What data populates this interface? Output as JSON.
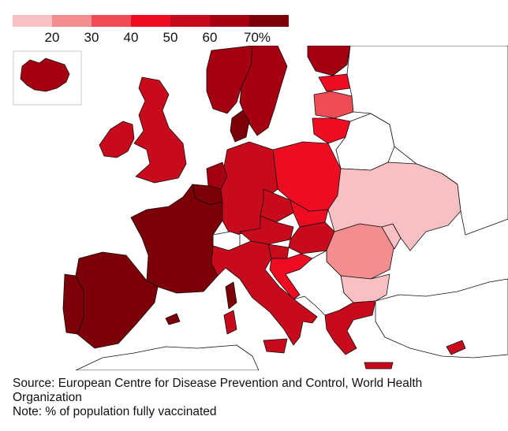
{
  "legend": {
    "colors": [
      "#f9c0c4",
      "#f48d8f",
      "#f04c55",
      "#ee0c22",
      "#c70a1c",
      "#a50012",
      "#7c0008"
    ],
    "ticks": [
      "20",
      "30",
      "40",
      "50",
      "60",
      "70%"
    ]
  },
  "map": {
    "iceland_color": "#a50012",
    "country_fills": {
      "iceland": "#a50012",
      "uk": "#c70a1c",
      "ireland": "#c70a1c",
      "norway": "#a50012",
      "sweden": "#a50012",
      "finland": "#a50012",
      "denmark": "#7c0008",
      "estonia": "#ee0c22",
      "latvia": "#f04c55",
      "lithuania": "#ee0c22",
      "poland": "#ee0c22",
      "germany": "#c70a1c",
      "netherlands": "#a50012",
      "belgium": "#7c0008",
      "france": "#7c0008",
      "spain": "#7c0008",
      "portugal": "#7c0008",
      "italy": "#c70a1c",
      "switzerland": "#ffffff",
      "austria": "#c70a1c",
      "czechia": "#c70a1c",
      "slovakia": "#ee0c22",
      "hungary": "#c70a1c",
      "slovenia": "#c70a1c",
      "croatia": "#ee0c22",
      "romania": "#f48d8f",
      "bulgaria": "#f9c0c4",
      "greece": "#c70a1c",
      "cyprus": "#c70a1c",
      "ukraine": "#f9c0c4",
      "moldova": "#f9c0c4",
      "belarus": "#ffffff",
      "balkans": "#ffffff",
      "turkey": "#ffffff",
      "russia": "#ffffff",
      "north_africa": "#ffffff"
    }
  },
  "notes": {
    "source": "Source: European Centre for Disease Prevention and Control, World Health Organization",
    "note": "Note: % of population fully vaccinated"
  }
}
